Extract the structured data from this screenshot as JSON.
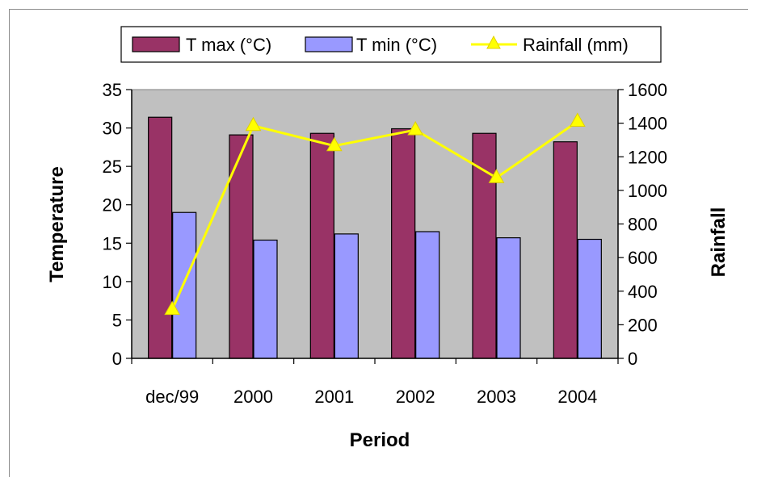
{
  "chart_data": {
    "type": "bar",
    "categories": [
      "dec/99",
      "2000",
      "2001",
      "2002",
      "2003",
      "2004"
    ],
    "series": [
      {
        "name": "T max (°C)",
        "type": "bar",
        "axis": "left",
        "color": "#993366",
        "values": [
          31.4,
          29.1,
          29.3,
          29.9,
          29.3,
          28.2
        ]
      },
      {
        "name": "T min (°C)",
        "type": "bar",
        "axis": "left",
        "color": "#9999ff",
        "values": [
          19.0,
          15.4,
          16.2,
          16.5,
          15.7,
          15.5
        ]
      },
      {
        "name": "Rainfall (mm)",
        "type": "line",
        "axis": "right",
        "color": "#ffff00",
        "marker": "triangle",
        "values": [
          290,
          1385,
          1265,
          1360,
          1075,
          1410
        ]
      }
    ],
    "xlabel": "Period",
    "ylabel": "Temperature",
    "y2label": "Rainfall",
    "ylim": [
      0,
      35
    ],
    "y2lim": [
      0,
      1600
    ],
    "yticks": [
      0,
      5,
      10,
      15,
      20,
      25,
      30,
      35
    ],
    "y2ticks": [
      0,
      200,
      400,
      600,
      800,
      1000,
      1200,
      1400,
      1600
    ],
    "plot_background": "#c0c0c0",
    "grid": false,
    "legend_position": "top"
  }
}
